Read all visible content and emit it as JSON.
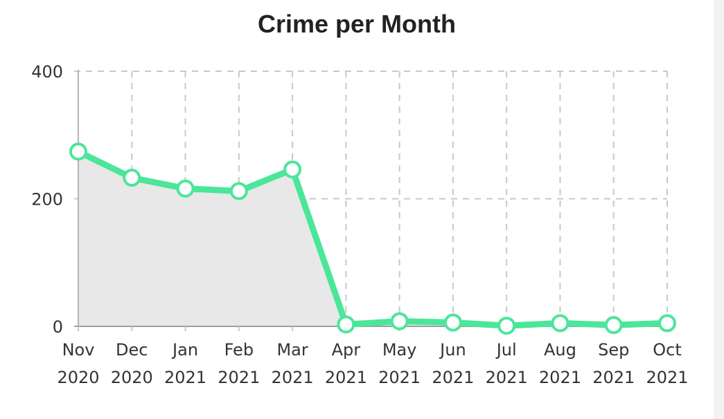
{
  "chart_data": {
    "type": "area",
    "title": "Crime per Month",
    "xlabel": "",
    "ylabel": "",
    "categories": [
      [
        "Nov",
        "2020"
      ],
      [
        "Dec",
        "2020"
      ],
      [
        "Jan",
        "2021"
      ],
      [
        "Feb",
        "2021"
      ],
      [
        "Mar",
        "2021"
      ],
      [
        "Apr",
        "2021"
      ],
      [
        "May",
        "2021"
      ],
      [
        "Jun",
        "2021"
      ],
      [
        "Jul",
        "2021"
      ],
      [
        "Aug",
        "2021"
      ],
      [
        "Sep",
        "2021"
      ],
      [
        "Oct",
        "2021"
      ]
    ],
    "values": [
      274,
      233,
      216,
      212,
      246,
      3,
      8,
      6,
      1,
      5,
      2,
      5
    ],
    "ylim": [
      0,
      400
    ],
    "yticks": [
      "0",
      "200",
      "400"
    ],
    "grid": true,
    "legend": "none",
    "colors": {
      "line": "#4be69a",
      "point_fill": "#ffffff",
      "area_fill": "#e8e8e8",
      "grid": "#c8c8c8",
      "axis": "#b5b5b5"
    }
  }
}
